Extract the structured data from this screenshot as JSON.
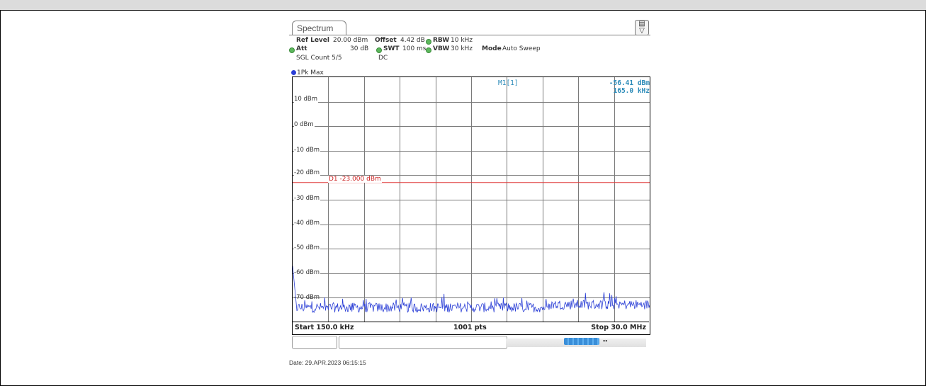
{
  "window": {
    "tab_label": "Spectrum"
  },
  "params": {
    "ref_level_label": "Ref Level",
    "ref_level_value": "20.00 dBm",
    "offset_label": "Offset",
    "offset_value": "4.42 dB",
    "rbw_label": "RBW",
    "rbw_value": "10 kHz",
    "att_label": "Att",
    "att_value": "30 dB",
    "swt_label": "SWT",
    "swt_value": "100 ms",
    "vbw_label": "VBW",
    "vbw_value": "30 kHz",
    "mode_label": "Mode",
    "mode_value": "Auto Sweep",
    "sgl_count": "SGL Count 5/5",
    "coupling": "DC"
  },
  "trace": {
    "label": "1Pk Max",
    "color": "#2b3fd6"
  },
  "marker": {
    "name": "M1[1]",
    "level": "-56.41 dBm",
    "freq": "165.0 kHz"
  },
  "display_line": {
    "label": "D1 -23.000 dBm",
    "level_dbm": -23,
    "color": "#e03a3a"
  },
  "yaxis": {
    "ticks": [
      "10 dBm",
      "0 dBm",
      "-10 dBm",
      "-20 dBm",
      "-30 dBm",
      "-40 dBm",
      "-50 dBm",
      "-60 dBm",
      "-70 dBm"
    ]
  },
  "footer": {
    "start": "Start 150.0 kHz",
    "points": "1001 pts",
    "stop": "Stop 30.0 MHz"
  },
  "date_line": "Date: 29.APR.2023  06:15:15",
  "chart_data": {
    "type": "line",
    "xlim": [
      0.15,
      30.0
    ],
    "ylim": [
      -80,
      20
    ],
    "noise_floor_dbm": -74,
    "series": [
      {
        "name": "1Pk Max",
        "values": []
      }
    ]
  }
}
